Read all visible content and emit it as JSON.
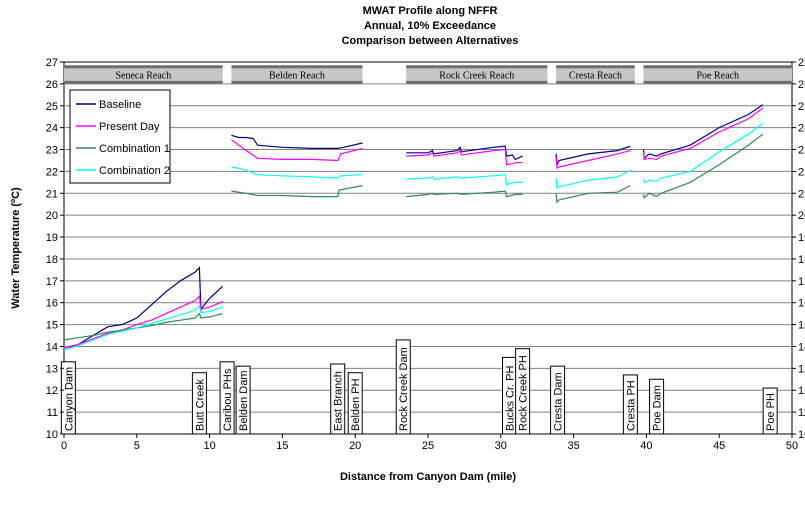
{
  "chart_data": {
    "type": "line",
    "title": [
      "MWAT Profile along NFFR",
      "Annual, 10% Exceedance",
      "Comparison between Alternatives"
    ],
    "xlabel": "Distance from Canyon Dam (mile)",
    "ylabel": "Water Temperature (ºC)",
    "xlim": [
      0,
      50
    ],
    "ylim": [
      10,
      27
    ],
    "xticks": [
      0,
      5,
      10,
      15,
      20,
      25,
      30,
      35,
      40,
      45,
      50
    ],
    "yticks": [
      10,
      11,
      12,
      13,
      14,
      15,
      16,
      17,
      18,
      19,
      20,
      21,
      22,
      23,
      24,
      25,
      26,
      27
    ],
    "grid": "horizontal",
    "legend_position": "top-left",
    "reaches": [
      {
        "label": "Seneca Reach",
        "x0": 0,
        "x1": 10.9
      },
      {
        "label": "Belden Reach",
        "x0": 11.5,
        "x1": 20.5
      },
      {
        "label": "Rock Creek Reach",
        "x0": 23.5,
        "x1": 33.2
      },
      {
        "label": "Cresta Reach",
        "x0": 33.8,
        "x1": 39.2
      },
      {
        "label": "Poe Reach",
        "x0": 39.8,
        "x1": 50
      }
    ],
    "landmarks": [
      {
        "label": "Canyon Dam",
        "x": 0.3,
        "top": 13.3
      },
      {
        "label": "Butt Creek",
        "x": 9.3,
        "top": 12.8
      },
      {
        "label": "Caribou PHs",
        "x": 11.2,
        "top": 13.3
      },
      {
        "label": "Belden Dam",
        "x": 12.3,
        "top": 13.1
      },
      {
        "label": "East Branch",
        "x": 18.8,
        "top": 13.2
      },
      {
        "label": "Belden PH",
        "x": 20.0,
        "top": 12.8
      },
      {
        "label": "Rock Creek Dam",
        "x": 23.3,
        "top": 14.3
      },
      {
        "label": "Bucks Cr. PH",
        "x": 30.6,
        "top": 13.5
      },
      {
        "label": "Rock Creek PH",
        "x": 31.5,
        "top": 13.9
      },
      {
        "label": "Cresta Dam",
        "x": 33.9,
        "top": 13.1
      },
      {
        "label": "Cresta PH",
        "x": 38.9,
        "top": 12.7
      },
      {
        "label": "Poe Dam",
        "x": 40.7,
        "top": 12.5
      },
      {
        "label": "Poe PH",
        "x": 48.5,
        "top": 12.1
      }
    ],
    "series": [
      {
        "name": "Baseline",
        "color": "#000080",
        "segments": [
          [
            [
              0,
              13.85
            ],
            [
              1,
              14.1
            ],
            [
              2,
              14.5
            ],
            [
              3,
              14.9
            ],
            [
              4,
              15.0
            ],
            [
              5,
              15.3
            ],
            [
              6,
              15.9
            ],
            [
              7,
              16.5
            ],
            [
              8,
              17.0
            ],
            [
              9,
              17.4
            ],
            [
              9.3,
              17.6
            ],
            [
              9.4,
              15.7
            ],
            [
              10,
              16.2
            ],
            [
              10.9,
              16.75
            ]
          ],
          [
            [
              11.5,
              23.65
            ],
            [
              12.0,
              23.55
            ],
            [
              12.5,
              23.55
            ],
            [
              13.0,
              23.5
            ],
            [
              13.3,
              23.2
            ],
            [
              15,
              23.1
            ],
            [
              17,
              23.05
            ],
            [
              18.8,
              23.05
            ],
            [
              19.2,
              23.1
            ],
            [
              20.5,
              23.3
            ]
          ],
          [
            [
              23.5,
              22.85
            ],
            [
              25,
              22.85
            ],
            [
              25.3,
              22.95
            ],
            [
              25.4,
              22.8
            ],
            [
              27,
              22.95
            ],
            [
              27.2,
              23.1
            ],
            [
              27.3,
              22.9
            ],
            [
              29.5,
              23.1
            ],
            [
              30.3,
              23.15
            ],
            [
              30.4,
              22.7
            ],
            [
              30.8,
              22.75
            ],
            [
              31.0,
              22.55
            ],
            [
              31.5,
              22.7
            ]
          ],
          [
            [
              33.8,
              22.8
            ],
            [
              33.85,
              22.3
            ],
            [
              34,
              22.5
            ],
            [
              36,
              22.8
            ],
            [
              38,
              22.95
            ],
            [
              38.9,
              23.15
            ]
          ],
          [
            [
              39.8,
              23.0
            ],
            [
              39.85,
              22.6
            ],
            [
              40.2,
              22.8
            ],
            [
              40.7,
              22.7
            ],
            [
              41,
              22.8
            ],
            [
              43,
              23.2
            ],
            [
              45,
              24.0
            ],
            [
              47,
              24.6
            ],
            [
              48,
              25.05
            ]
          ]
        ]
      },
      {
        "name": "Present Day",
        "color": "#ff00ff",
        "segments": [
          [
            [
              0,
              13.95
            ],
            [
              1,
              14.1
            ],
            [
              2,
              14.35
            ],
            [
              3,
              14.6
            ],
            [
              4,
              14.75
            ],
            [
              5,
              15.0
            ],
            [
              6,
              15.2
            ],
            [
              7,
              15.5
            ],
            [
              8,
              15.8
            ],
            [
              9,
              16.1
            ],
            [
              9.3,
              16.3
            ],
            [
              9.4,
              15.7
            ],
            [
              10,
              15.8
            ],
            [
              10.9,
              16.05
            ]
          ],
          [
            [
              11.5,
              23.45
            ],
            [
              12.3,
              23.05
            ],
            [
              13.3,
              22.6
            ],
            [
              15,
              22.55
            ],
            [
              17,
              22.55
            ],
            [
              18.8,
              22.5
            ],
            [
              19.0,
              22.8
            ],
            [
              20.5,
              23.05
            ]
          ],
          [
            [
              23.5,
              22.7
            ],
            [
              25,
              22.75
            ],
            [
              25.3,
              22.85
            ],
            [
              25.4,
              22.7
            ],
            [
              27,
              22.85
            ],
            [
              27.2,
              22.95
            ],
            [
              27.3,
              22.75
            ],
            [
              29.5,
              22.95
            ],
            [
              30.3,
              23.0
            ],
            [
              30.4,
              22.3
            ],
            [
              30.8,
              22.35
            ],
            [
              31.0,
              22.4
            ],
            [
              31.5,
              22.4
            ]
          ],
          [
            [
              33.8,
              22.65
            ],
            [
              33.85,
              22.15
            ],
            [
              34,
              22.2
            ],
            [
              36,
              22.5
            ],
            [
              38,
              22.8
            ],
            [
              38.9,
              22.95
            ]
          ],
          [
            [
              39.8,
              22.9
            ],
            [
              39.85,
              22.55
            ],
            [
              40.2,
              22.6
            ],
            [
              40.7,
              22.55
            ],
            [
              41,
              22.7
            ],
            [
              43,
              23.05
            ],
            [
              45,
              23.8
            ],
            [
              47,
              24.4
            ],
            [
              48,
              24.9
            ]
          ]
        ]
      },
      {
        "name": "Combination 1",
        "color": "#2e8b57",
        "segments": [
          [
            [
              0,
              14.3
            ],
            [
              1,
              14.4
            ],
            [
              2,
              14.5
            ],
            [
              3,
              14.65
            ],
            [
              4,
              14.75
            ],
            [
              5,
              14.85
            ],
            [
              6,
              14.95
            ],
            [
              7,
              15.1
            ],
            [
              8,
              15.2
            ],
            [
              9,
              15.3
            ],
            [
              9.3,
              15.5
            ],
            [
              9.4,
              15.3
            ],
            [
              10,
              15.35
            ],
            [
              10.9,
              15.5
            ]
          ],
          [
            [
              11.5,
              21.1
            ],
            [
              12.5,
              21.0
            ],
            [
              13.3,
              20.9
            ],
            [
              15,
              20.9
            ],
            [
              17,
              20.85
            ],
            [
              18.8,
              20.85
            ],
            [
              18.9,
              21.15
            ],
            [
              20.5,
              21.35
            ]
          ],
          [
            [
              23.5,
              20.85
            ],
            [
              25,
              20.95
            ],
            [
              25.3,
              21.0
            ],
            [
              25.4,
              20.95
            ],
            [
              27,
              21.0
            ],
            [
              27.3,
              20.95
            ],
            [
              29.5,
              21.05
            ],
            [
              30.3,
              21.1
            ],
            [
              30.4,
              20.85
            ],
            [
              31.0,
              20.95
            ],
            [
              31.5,
              20.95
            ]
          ],
          [
            [
              33.8,
              21.0
            ],
            [
              33.85,
              20.6
            ],
            [
              34,
              20.7
            ],
            [
              36,
              21.0
            ],
            [
              38,
              21.05
            ],
            [
              38.9,
              21.35
            ]
          ],
          [
            [
              39.8,
              20.95
            ],
            [
              39.85,
              20.8
            ],
            [
              40.2,
              21.0
            ],
            [
              40.7,
              20.85
            ],
            [
              41,
              21.0
            ],
            [
              43,
              21.5
            ],
            [
              45,
              22.3
            ],
            [
              47,
              23.2
            ],
            [
              48,
              23.7
            ]
          ]
        ]
      },
      {
        "name": "Combination 2",
        "color": "#00ffff",
        "segments": [
          [
            [
              0,
              13.85
            ],
            [
              1,
              14.05
            ],
            [
              2,
              14.3
            ],
            [
              3,
              14.55
            ],
            [
              4,
              14.7
            ],
            [
              5,
              14.85
            ],
            [
              6,
              15.05
            ],
            [
              7,
              15.25
            ],
            [
              8,
              15.45
            ],
            [
              9,
              15.65
            ],
            [
              9.3,
              15.85
            ],
            [
              9.4,
              15.55
            ],
            [
              10,
              15.6
            ],
            [
              10.9,
              15.8
            ]
          ],
          [
            [
              11.5,
              22.2
            ],
            [
              12.3,
              22.1
            ],
            [
              13.3,
              21.85
            ],
            [
              15,
              21.8
            ],
            [
              17,
              21.75
            ],
            [
              18.8,
              21.7
            ],
            [
              19.0,
              21.8
            ],
            [
              20.5,
              21.85
            ]
          ],
          [
            [
              23.5,
              21.65
            ],
            [
              25,
              21.7
            ],
            [
              25.3,
              21.75
            ],
            [
              25.4,
              21.65
            ],
            [
              27,
              21.75
            ],
            [
              27.3,
              21.7
            ],
            [
              29.5,
              21.8
            ],
            [
              30.3,
              21.85
            ],
            [
              30.4,
              21.4
            ],
            [
              31.0,
              21.5
            ],
            [
              31.5,
              21.5
            ]
          ],
          [
            [
              33.8,
              21.7
            ],
            [
              33.85,
              21.25
            ],
            [
              34,
              21.3
            ],
            [
              36,
              21.6
            ],
            [
              38,
              21.75
            ],
            [
              38.9,
              22.05
            ]
          ],
          [
            [
              39.8,
              21.65
            ],
            [
              39.85,
              21.5
            ],
            [
              40.2,
              21.6
            ],
            [
              40.7,
              21.55
            ],
            [
              41,
              21.7
            ],
            [
              43,
              22.0
            ],
            [
              45,
              22.9
            ],
            [
              47,
              23.7
            ],
            [
              48,
              24.2
            ]
          ]
        ]
      }
    ]
  }
}
